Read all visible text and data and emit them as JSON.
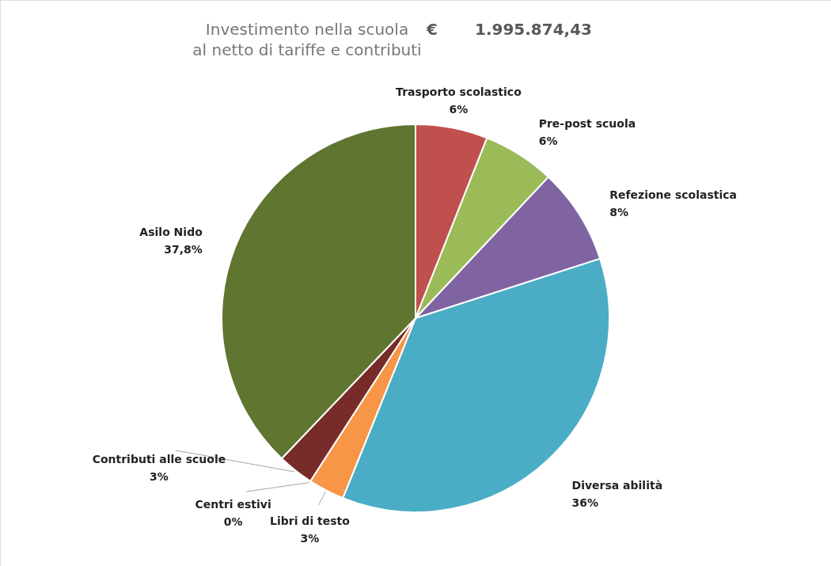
{
  "chart_data": {
    "type": "pie",
    "title": "Investimento nella scuola",
    "subtitle": "al netto di tariffe e contributi",
    "annotations": [
      "€",
      "1.995.874,43"
    ],
    "categories": [
      "Trasporto scolastico",
      "Pre-post scuola",
      "Refezione scolastica",
      "Diversa abilità",
      "Libri di testo",
      "Centri estivi",
      "Contributi alle scuole",
      "Asilo Nido"
    ],
    "values": [
      6,
      6,
      8,
      36,
      3,
      0,
      3,
      37.8
    ],
    "value_labels": [
      "6%",
      "6%",
      "8%",
      "36%",
      "3%",
      "0%",
      "3%",
      "37,8%"
    ],
    "colors": [
      "#c0504d",
      "#9bbb59",
      "#8064a2",
      "#4bacc6",
      "#f79646",
      "#1f497d",
      "#772c2a",
      "#5f7530"
    ]
  }
}
